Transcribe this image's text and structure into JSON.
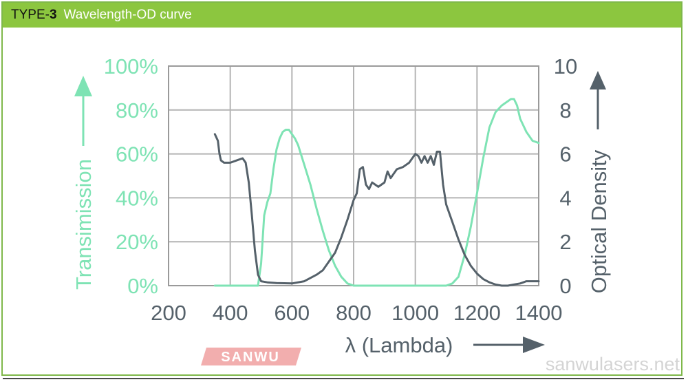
{
  "header": {
    "prefix": "TYPE-",
    "number": "3",
    "title": "Wavelength-OD curve"
  },
  "watermark": {
    "logo": "SANWU",
    "site": "sanwulasers.net"
  },
  "colors": {
    "transmission": "#7ee3b4",
    "od": "#55616a",
    "grid": "#b4b4b4",
    "header": "#8cc63f",
    "logo": "#e86b6b"
  },
  "chart_data": {
    "type": "line",
    "xlabel": "λ (Lambda)",
    "ylabel_left": "Transimission",
    "ylabel_right": "Optical Density",
    "xlim": [
      200,
      1400
    ],
    "ylim_left": [
      0,
      100
    ],
    "ylim_right": [
      0,
      10
    ],
    "x_ticks": [
      "200",
      "400",
      "600",
      "800",
      "1000",
      "1200",
      "1400"
    ],
    "y_left_ticks": [
      "0%",
      "20%",
      "40%",
      "60%",
      "80%",
      "100%"
    ],
    "y_right_ticks": [
      "0",
      "2",
      "4",
      "6",
      "8",
      "10"
    ],
    "grid": true,
    "series": [
      {
        "axis": "left",
        "x": [
          350,
          490,
          500,
          510,
          520,
          530,
          540,
          550,
          560,
          570,
          580,
          590,
          600,
          610,
          620,
          640,
          660,
          680,
          700,
          720,
          740,
          760,
          780,
          800,
          850,
          900,
          1000,
          1100,
          1120,
          1140,
          1160,
          1180,
          1200,
          1220,
          1240,
          1260,
          1280,
          1300,
          1310,
          1320,
          1330,
          1340,
          1360,
          1380,
          1400
        ],
        "values": [
          0,
          0,
          10,
          32,
          38,
          42,
          53,
          62,
          67,
          70,
          71,
          71,
          69,
          67,
          64,
          55,
          46,
          35,
          25,
          16,
          9,
          4,
          1,
          0,
          0,
          0,
          0,
          0,
          1,
          4,
          14,
          27,
          42,
          58,
          72,
          79,
          82,
          84,
          85,
          85,
          82,
          76,
          70,
          66,
          65
        ]
      },
      {
        "axis": "right",
        "x": [
          350,
          360,
          365,
          370,
          380,
          400,
          420,
          440,
          450,
          460,
          470,
          480,
          490,
          500,
          520,
          550,
          600,
          640,
          680,
          700,
          740,
          760,
          780,
          800,
          810,
          820,
          830,
          840,
          850,
          860,
          880,
          900,
          910,
          920,
          940,
          960,
          980,
          990,
          1000,
          1010,
          1020,
          1030,
          1040,
          1050,
          1060,
          1070,
          1080,
          1090,
          1100,
          1120,
          1140,
          1160,
          1180,
          1200,
          1220,
          1240,
          1260,
          1280,
          1300,
          1320,
          1340,
          1360,
          1380,
          1400
        ],
        "values": [
          6.9,
          6.6,
          6.0,
          5.7,
          5.6,
          5.6,
          5.7,
          5.8,
          5.6,
          4.7,
          3.2,
          1.6,
          0.5,
          0.2,
          0.15,
          0.12,
          0.1,
          0.2,
          0.5,
          0.7,
          1.5,
          2.2,
          3.0,
          3.9,
          4.2,
          5.3,
          5.4,
          4.6,
          4.4,
          4.7,
          4.5,
          4.7,
          5.2,
          4.9,
          5.3,
          5.4,
          5.6,
          5.8,
          6.0,
          5.9,
          5.6,
          5.9,
          5.6,
          5.9,
          5.5,
          6.1,
          6.1,
          4.6,
          3.7,
          2.9,
          2.1,
          1.4,
          0.9,
          0.55,
          0.3,
          0.15,
          0.05,
          0.0,
          0.0,
          0.05,
          0.1,
          0.2,
          0.2,
          0.2
        ]
      }
    ]
  }
}
